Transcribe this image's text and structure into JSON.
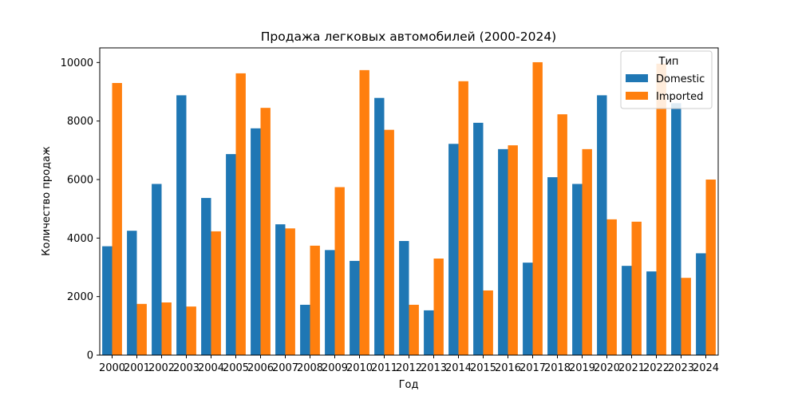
{
  "chart_data": {
    "type": "bar",
    "title": "Продажа легковых автомобилей (2000-2024)",
    "xlabel": "Год",
    "ylabel": "Количество продаж",
    "categories": [
      "2000",
      "2001",
      "2002",
      "2003",
      "2004",
      "2005",
      "2006",
      "2007",
      "2008",
      "2009",
      "2010",
      "2011",
      "2012",
      "2013",
      "2014",
      "2015",
      "2016",
      "2017",
      "2018",
      "2019",
      "2020",
      "2021",
      "2022",
      "2023",
      "2024"
    ],
    "series": [
      {
        "name": "Domestic",
        "color": "#1f77b4",
        "values": [
          3720,
          4250,
          5850,
          8880,
          5370,
          6870,
          7750,
          4470,
          1720,
          3590,
          3220,
          8790,
          3900,
          1530,
          7220,
          7940,
          7040,
          3160,
          6080,
          5850,
          8880,
          3050,
          2860,
          8610,
          3480
        ]
      },
      {
        "name": "Imported",
        "color": "#ff7f0e",
        "values": [
          9300,
          1750,
          1800,
          1660,
          4230,
          9630,
          8450,
          4330,
          3740,
          5740,
          9740,
          7700,
          1720,
          3300,
          9360,
          2210,
          7170,
          10010,
          8230,
          7040,
          4640,
          4560,
          9960,
          2640,
          6000
        ]
      }
    ],
    "ylim": [
      0,
      10500
    ],
    "yticks": [
      0,
      2000,
      4000,
      6000,
      8000,
      10000
    ],
    "grid": false,
    "legend": {
      "title": "Тип",
      "position": "top-right"
    }
  }
}
